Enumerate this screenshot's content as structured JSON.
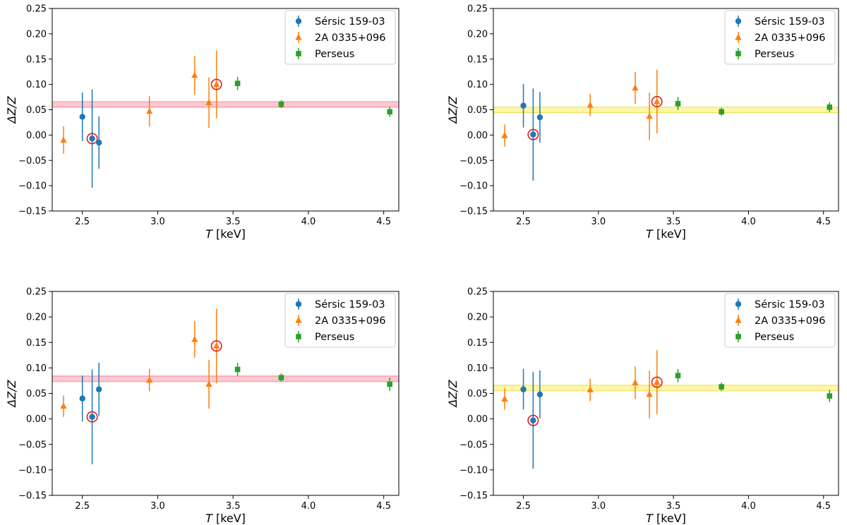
{
  "chart_data": [
    {
      "type": "scatter",
      "panel": "top-left",
      "xlabel_italic": "T",
      "xlabel_unit": " [keV]",
      "ylabel": "ΔZ/Z",
      "xlim": [
        2.3,
        4.6
      ],
      "ylim": [
        -0.15,
        0.25
      ],
      "xticks": [
        2.5,
        3.0,
        3.5,
        4.0,
        4.5
      ],
      "xtick_labels": [
        "2.5",
        "3.0",
        "3.5",
        "4.0",
        "4.5"
      ],
      "yticks": [
        -0.15,
        -0.1,
        -0.05,
        0.0,
        0.05,
        0.1,
        0.15,
        0.2,
        0.25
      ],
      "ytick_labels": [
        "−0.15",
        "−0.10",
        "−0.05",
        "0.00",
        "0.05",
        "0.10",
        "0.15",
        "0.20",
        "0.25"
      ],
      "band": {
        "low": 0.055,
        "high": 0.066,
        "color": "#ffc8d0",
        "edge": "#e87a8a"
      },
      "legend_position": "top-right",
      "series": [
        {
          "name": "Sérsic 159-03",
          "marker": "circle",
          "color": "#1f77b4",
          "points": [
            {
              "x": 2.5,
              "y": 0.036,
              "err": 0.048
            },
            {
              "x": 2.565,
              "y": -0.007,
              "err": 0.097,
              "highlight": true
            },
            {
              "x": 2.61,
              "y": -0.015,
              "err": 0.052
            }
          ]
        },
        {
          "name": "2A 0335+096",
          "marker": "triangle",
          "color": "#ff7f0e",
          "points": [
            {
              "x": 2.375,
              "y": -0.01,
              "err": 0.027
            },
            {
              "x": 2.945,
              "y": 0.047,
              "err": 0.03
            },
            {
              "x": 3.245,
              "y": 0.118,
              "err": 0.038
            },
            {
              "x": 3.34,
              "y": 0.064,
              "err": 0.05
            },
            {
              "x": 3.39,
              "y": 0.1,
              "err": 0.067,
              "highlight": true
            }
          ]
        },
        {
          "name": "Perseus",
          "marker": "square",
          "color": "#2ca02c",
          "points": [
            {
              "x": 3.53,
              "y": 0.102,
              "err": 0.013
            },
            {
              "x": 3.82,
              "y": 0.061,
              "err": 0.008
            },
            {
              "x": 4.54,
              "y": 0.046,
              "err": 0.01
            }
          ]
        }
      ]
    },
    {
      "type": "scatter",
      "panel": "top-right",
      "xlabel_italic": "T",
      "xlabel_unit": " [keV]",
      "ylabel": "ΔZ/Z",
      "xlim": [
        2.3,
        4.6
      ],
      "ylim": [
        -0.15,
        0.25
      ],
      "xticks": [
        2.5,
        3.0,
        3.5,
        4.0,
        4.5
      ],
      "xtick_labels": [
        "2.5",
        "3.0",
        "3.5",
        "4.0",
        "4.5"
      ],
      "yticks": [
        -0.15,
        -0.1,
        -0.05,
        0.0,
        0.05,
        0.1,
        0.15,
        0.2,
        0.25
      ],
      "ytick_labels": [
        "−0.15",
        "−0.10",
        "−0.05",
        "0.00",
        "0.05",
        "0.10",
        "0.15",
        "0.20",
        "0.25"
      ],
      "band": {
        "low": 0.044,
        "high": 0.055,
        "color": "#fff7a8",
        "edge": "#e6d640"
      },
      "legend_position": "top-right",
      "series": [
        {
          "name": "Sérsic 159-03",
          "marker": "circle",
          "color": "#1f77b4",
          "points": [
            {
              "x": 2.5,
              "y": 0.058,
              "err": 0.043
            },
            {
              "x": 2.565,
              "y": 0.001,
              "err": 0.091,
              "highlight": true
            },
            {
              "x": 2.61,
              "y": 0.035,
              "err": 0.05
            }
          ]
        },
        {
          "name": "2A 0335+096",
          "marker": "triangle",
          "color": "#ff7f0e",
          "points": [
            {
              "x": 2.375,
              "y": -0.001,
              "err": 0.022
            },
            {
              "x": 2.945,
              "y": 0.059,
              "err": 0.022
            },
            {
              "x": 3.245,
              "y": 0.093,
              "err": 0.032
            },
            {
              "x": 3.34,
              "y": 0.037,
              "err": 0.047
            },
            {
              "x": 3.39,
              "y": 0.066,
              "err": 0.063,
              "highlight": true
            }
          ]
        },
        {
          "name": "Perseus",
          "marker": "square",
          "color": "#2ca02c",
          "points": [
            {
              "x": 3.53,
              "y": 0.062,
              "err": 0.013
            },
            {
              "x": 3.82,
              "y": 0.046,
              "err": 0.008
            },
            {
              "x": 4.54,
              "y": 0.055,
              "err": 0.01
            }
          ]
        }
      ]
    },
    {
      "type": "scatter",
      "panel": "bottom-left",
      "xlabel_italic": "T",
      "xlabel_unit": " [keV]",
      "ylabel": "ΔZ/Z",
      "xlim": [
        2.3,
        4.6
      ],
      "ylim": [
        -0.15,
        0.25
      ],
      "xticks": [
        2.5,
        3.0,
        3.5,
        4.0,
        4.5
      ],
      "xtick_labels": [
        "2.5",
        "3.0",
        "3.5",
        "4.0",
        "4.5"
      ],
      "yticks": [
        -0.15,
        -0.1,
        -0.05,
        0.0,
        0.05,
        0.1,
        0.15,
        0.2,
        0.25
      ],
      "ytick_labels": [
        "−0.15",
        "−0.10",
        "−0.05",
        "0.00",
        "0.05",
        "0.10",
        "0.15",
        "0.20",
        "0.25"
      ],
      "band": {
        "low": 0.073,
        "high": 0.084,
        "color": "#ffc8d0",
        "edge": "#e87a8a"
      },
      "legend_position": "top-right",
      "series": [
        {
          "name": "Sérsic 159-03",
          "marker": "circle",
          "color": "#1f77b4",
          "points": [
            {
              "x": 2.5,
              "y": 0.04,
              "err": 0.045
            },
            {
              "x": 2.565,
              "y": 0.004,
              "err": 0.093,
              "highlight": true
            },
            {
              "x": 2.61,
              "y": 0.058,
              "err": 0.052
            }
          ]
        },
        {
          "name": "2A 0335+096",
          "marker": "triangle",
          "color": "#ff7f0e",
          "points": [
            {
              "x": 2.375,
              "y": 0.025,
              "err": 0.021
            },
            {
              "x": 2.945,
              "y": 0.076,
              "err": 0.022
            },
            {
              "x": 3.245,
              "y": 0.156,
              "err": 0.036
            },
            {
              "x": 3.34,
              "y": 0.068,
              "err": 0.048
            },
            {
              "x": 3.39,
              "y": 0.143,
              "err": 0.073,
              "highlight": true
            }
          ]
        },
        {
          "name": "Perseus",
          "marker": "square",
          "color": "#2ca02c",
          "points": [
            {
              "x": 3.53,
              "y": 0.097,
              "err": 0.013
            },
            {
              "x": 3.82,
              "y": 0.081,
              "err": 0.008
            },
            {
              "x": 4.54,
              "y": 0.068,
              "err": 0.013
            }
          ]
        }
      ]
    },
    {
      "type": "scatter",
      "panel": "bottom-right",
      "xlabel_italic": "T",
      "xlabel_unit": " [keV]",
      "ylabel": "ΔZ/Z",
      "xlim": [
        2.3,
        4.6
      ],
      "ylim": [
        -0.15,
        0.25
      ],
      "xticks": [
        2.5,
        3.0,
        3.5,
        4.0,
        4.5
      ],
      "xtick_labels": [
        "2.5",
        "3.0",
        "3.5",
        "4.0",
        "4.5"
      ],
      "yticks": [
        -0.15,
        -0.1,
        -0.05,
        0.0,
        0.05,
        0.1,
        0.15,
        0.2,
        0.25
      ],
      "ytick_labels": [
        "−0.15",
        "−0.10",
        "−0.05",
        "0.00",
        "0.05",
        "0.10",
        "0.15",
        "0.20",
        "0.25"
      ],
      "band": {
        "low": 0.055,
        "high": 0.066,
        "color": "#fff7a8",
        "edge": "#e6d640"
      },
      "legend_position": "top-right",
      "series": [
        {
          "name": "Sérsic 159-03",
          "marker": "circle",
          "color": "#1f77b4",
          "points": [
            {
              "x": 2.5,
              "y": 0.058,
              "err": 0.04
            },
            {
              "x": 2.565,
              "y": -0.003,
              "err": 0.095,
              "highlight": true
            },
            {
              "x": 2.61,
              "y": 0.048,
              "err": 0.047
            }
          ]
        },
        {
          "name": "2A 0335+096",
          "marker": "triangle",
          "color": "#ff7f0e",
          "points": [
            {
              "x": 2.375,
              "y": 0.039,
              "err": 0.021
            },
            {
              "x": 2.945,
              "y": 0.057,
              "err": 0.022
            },
            {
              "x": 3.245,
              "y": 0.071,
              "err": 0.032
            },
            {
              "x": 3.34,
              "y": 0.048,
              "err": 0.047
            },
            {
              "x": 3.39,
              "y": 0.072,
              "err": 0.063,
              "highlight": true
            }
          ]
        },
        {
          "name": "Perseus",
          "marker": "square",
          "color": "#2ca02c",
          "points": [
            {
              "x": 3.53,
              "y": 0.085,
              "err": 0.013
            },
            {
              "x": 3.82,
              "y": 0.063,
              "err": 0.008
            },
            {
              "x": 4.54,
              "y": 0.045,
              "err": 0.012
            }
          ]
        }
      ]
    }
  ],
  "highlight_color": "#e31a1c"
}
